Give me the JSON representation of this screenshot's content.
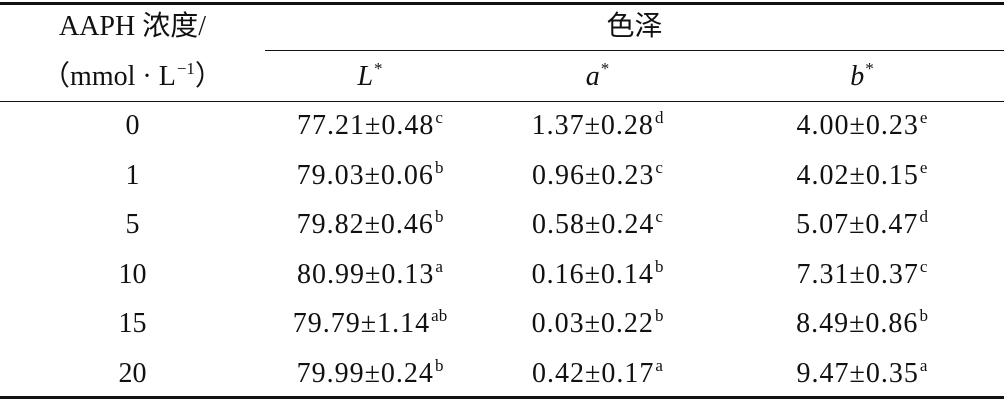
{
  "table": {
    "header": {
      "col0_line1": "AAPH 浓度/",
      "col0_line2": {
        "text": "（mmol · L",
        "sup": "−1",
        "end": "）"
      },
      "group": "色泽",
      "columns": [
        {
          "text": "L",
          "sup": "*"
        },
        {
          "text": "a",
          "sup": "*"
        },
        {
          "text": "b",
          "sup": "*"
        }
      ]
    },
    "rows": [
      [
        "0",
        {
          "value": "77.21±0.48",
          "sup": "c"
        },
        {
          "value": "1.37±0.28",
          "sup": "d"
        },
        {
          "value": "4.00±0.23",
          "sup": "e"
        }
      ],
      [
        "1",
        {
          "value": "79.03±0.06",
          "sup": "b"
        },
        {
          "value": "0.96±0.23",
          "sup": "c"
        },
        {
          "value": "4.02±0.15",
          "sup": "e"
        }
      ],
      [
        "5",
        {
          "value": "79.82±0.46",
          "sup": "b"
        },
        {
          "value": "0.58±0.24",
          "sup": "c"
        },
        {
          "value": "5.07±0.47",
          "sup": "d"
        }
      ],
      [
        "10",
        {
          "value": "80.99±0.13",
          "sup": "a"
        },
        {
          "value": "0.16±0.14",
          "sup": "b"
        },
        {
          "value": "7.31±0.37",
          "sup": "c"
        }
      ],
      [
        "15",
        {
          "value": "79.79±1.14",
          "sup": "ab"
        },
        {
          "value": "0.03±0.22",
          "sup": "b"
        },
        {
          "value": "8.49±0.86",
          "sup": "b"
        }
      ],
      [
        "20",
        {
          "value": "79.99±0.24",
          "sup": "b"
        },
        {
          "value": "0.42±0.17",
          "sup": "a"
        },
        {
          "value": "9.47±0.35",
          "sup": "a"
        }
      ]
    ]
  }
}
